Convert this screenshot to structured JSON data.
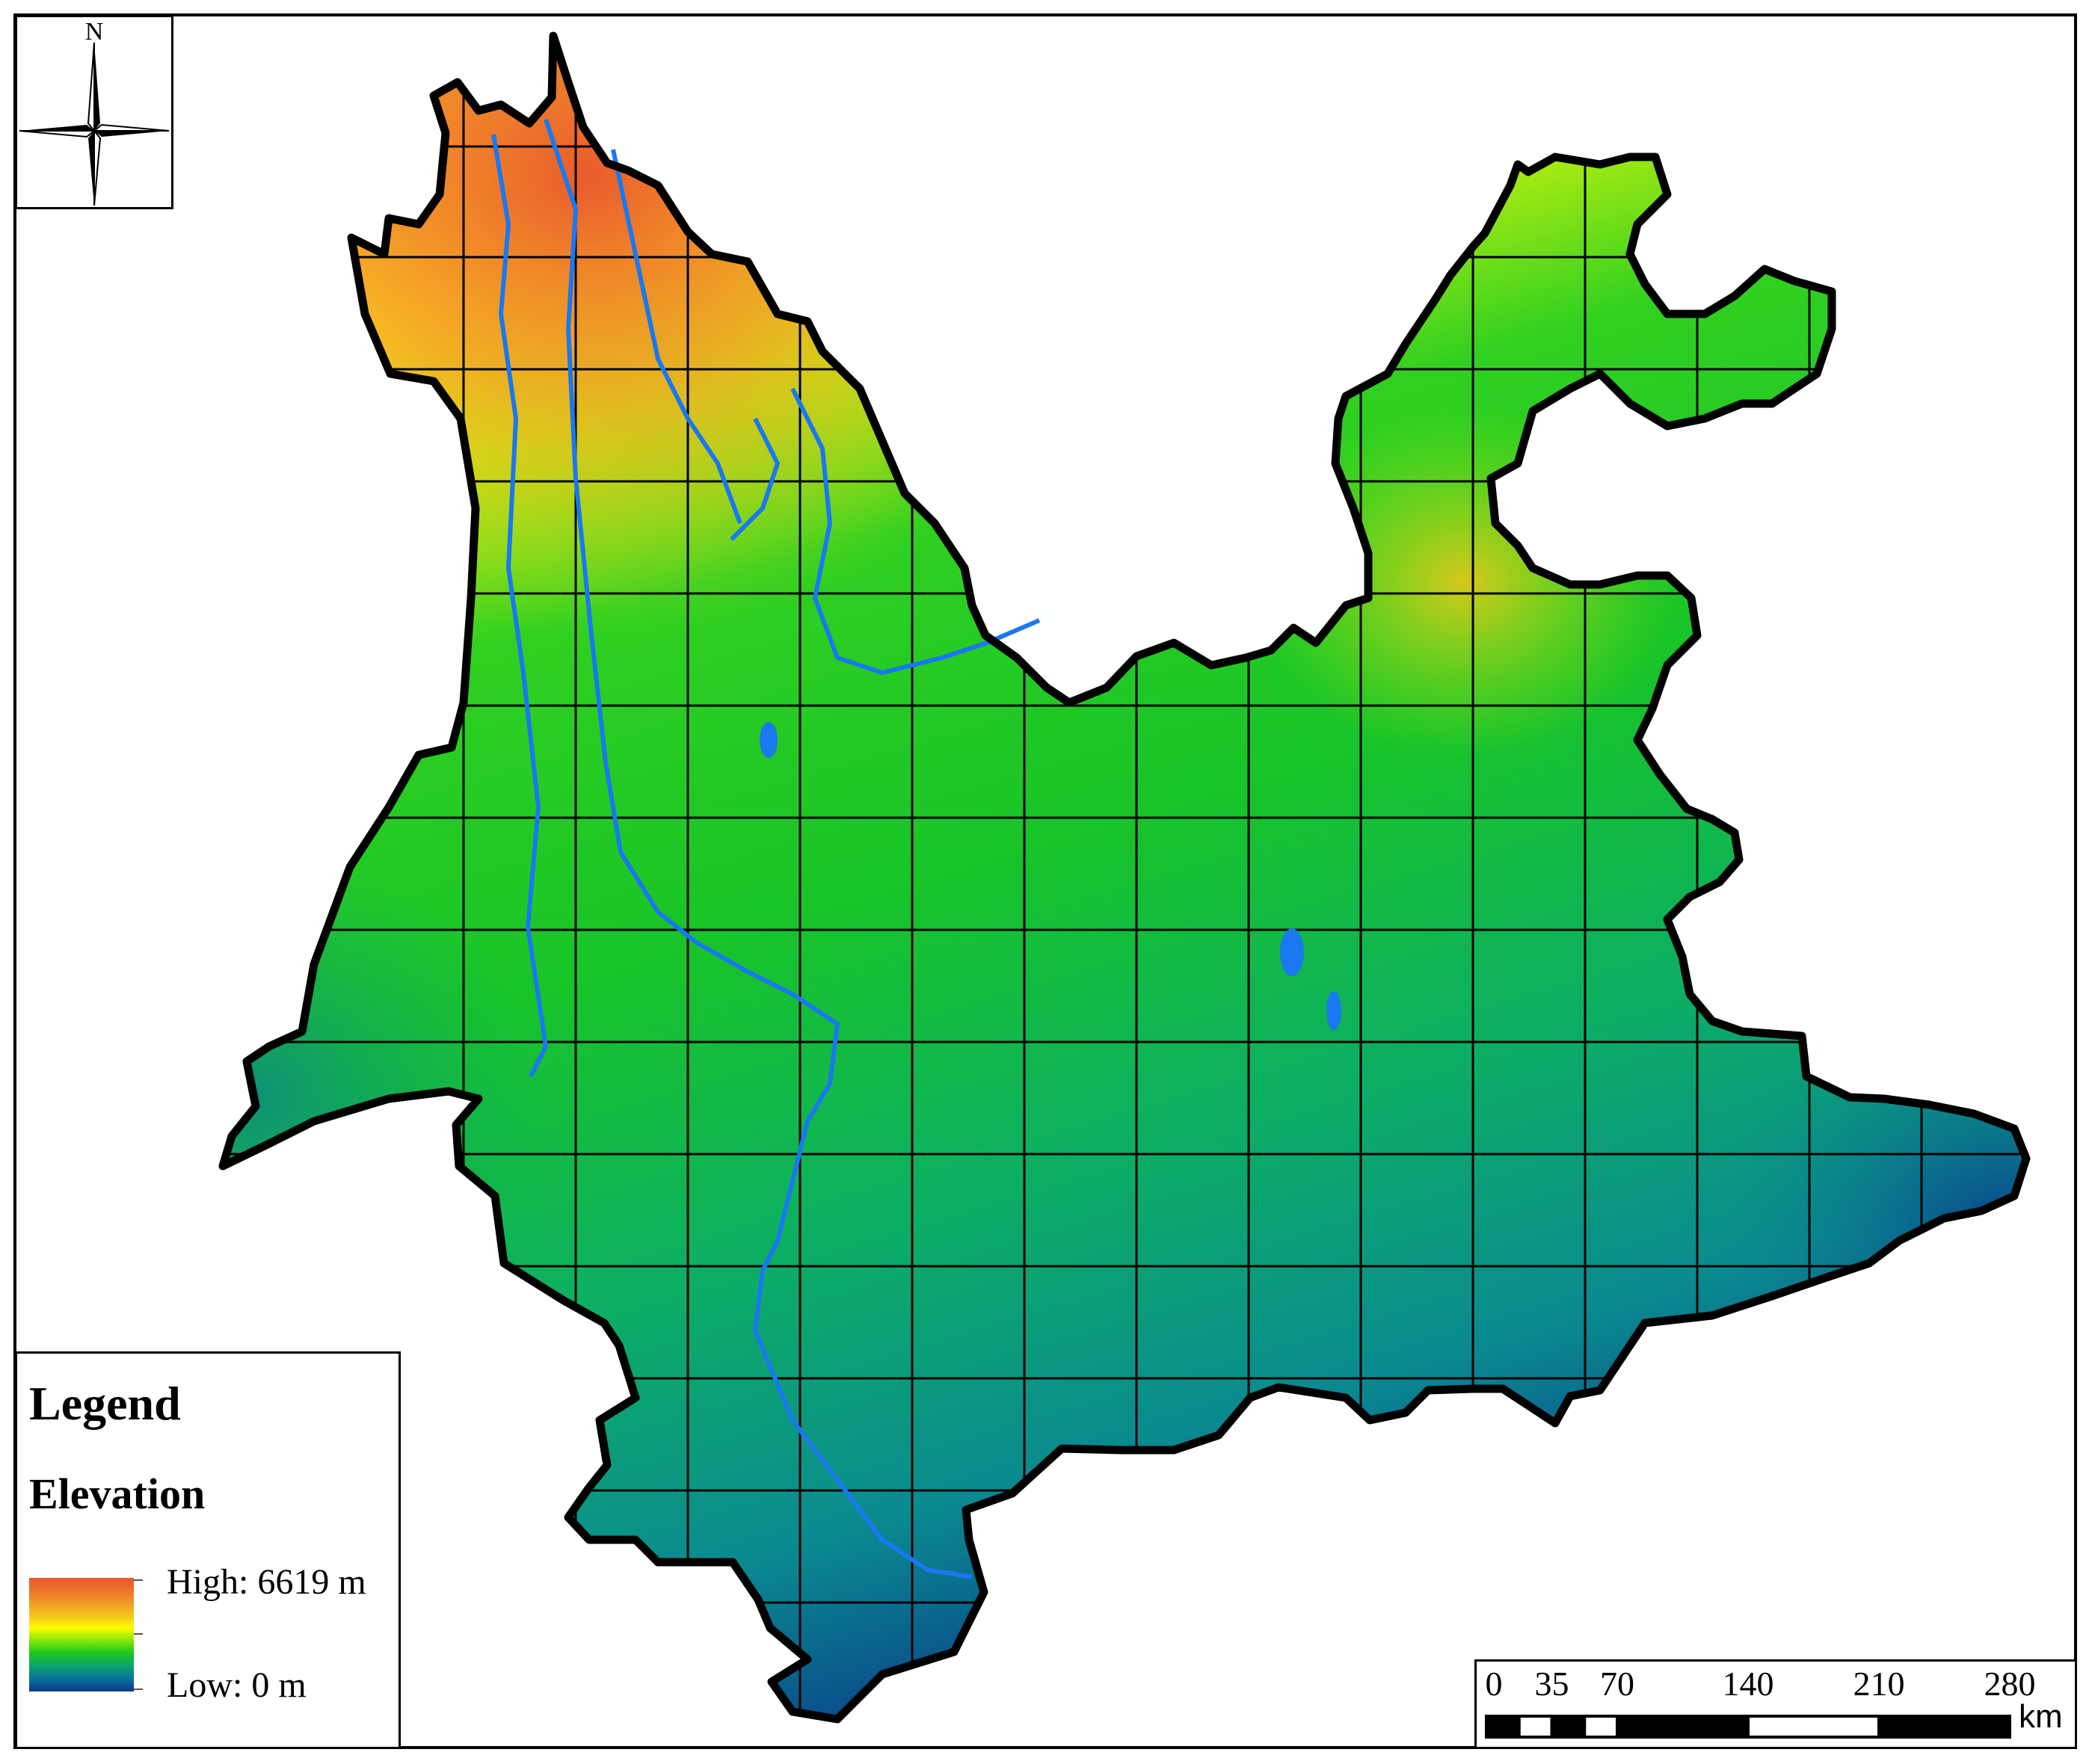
{
  "map": {
    "type": "elevation-raster",
    "north_label": "N",
    "boundary_color": "#000000",
    "grid": "on"
  },
  "legend": {
    "title": "Legend",
    "subtitle": "Elevation",
    "high_label": "High: 6619 m",
    "low_label": "Low: 0 m",
    "high_value_m": 6619,
    "low_value_m": 0,
    "colors": [
      "#e8552e",
      "#f08a28",
      "#f6d21a",
      "#fffc00",
      "#7ee60a",
      "#1cc81c",
      "#0aa570",
      "#0b6a9c",
      "#0a3a8a"
    ]
  },
  "scale_bar": {
    "labels": [
      "0",
      "35",
      "70",
      "140",
      "210",
      "280"
    ],
    "unit": "km"
  }
}
